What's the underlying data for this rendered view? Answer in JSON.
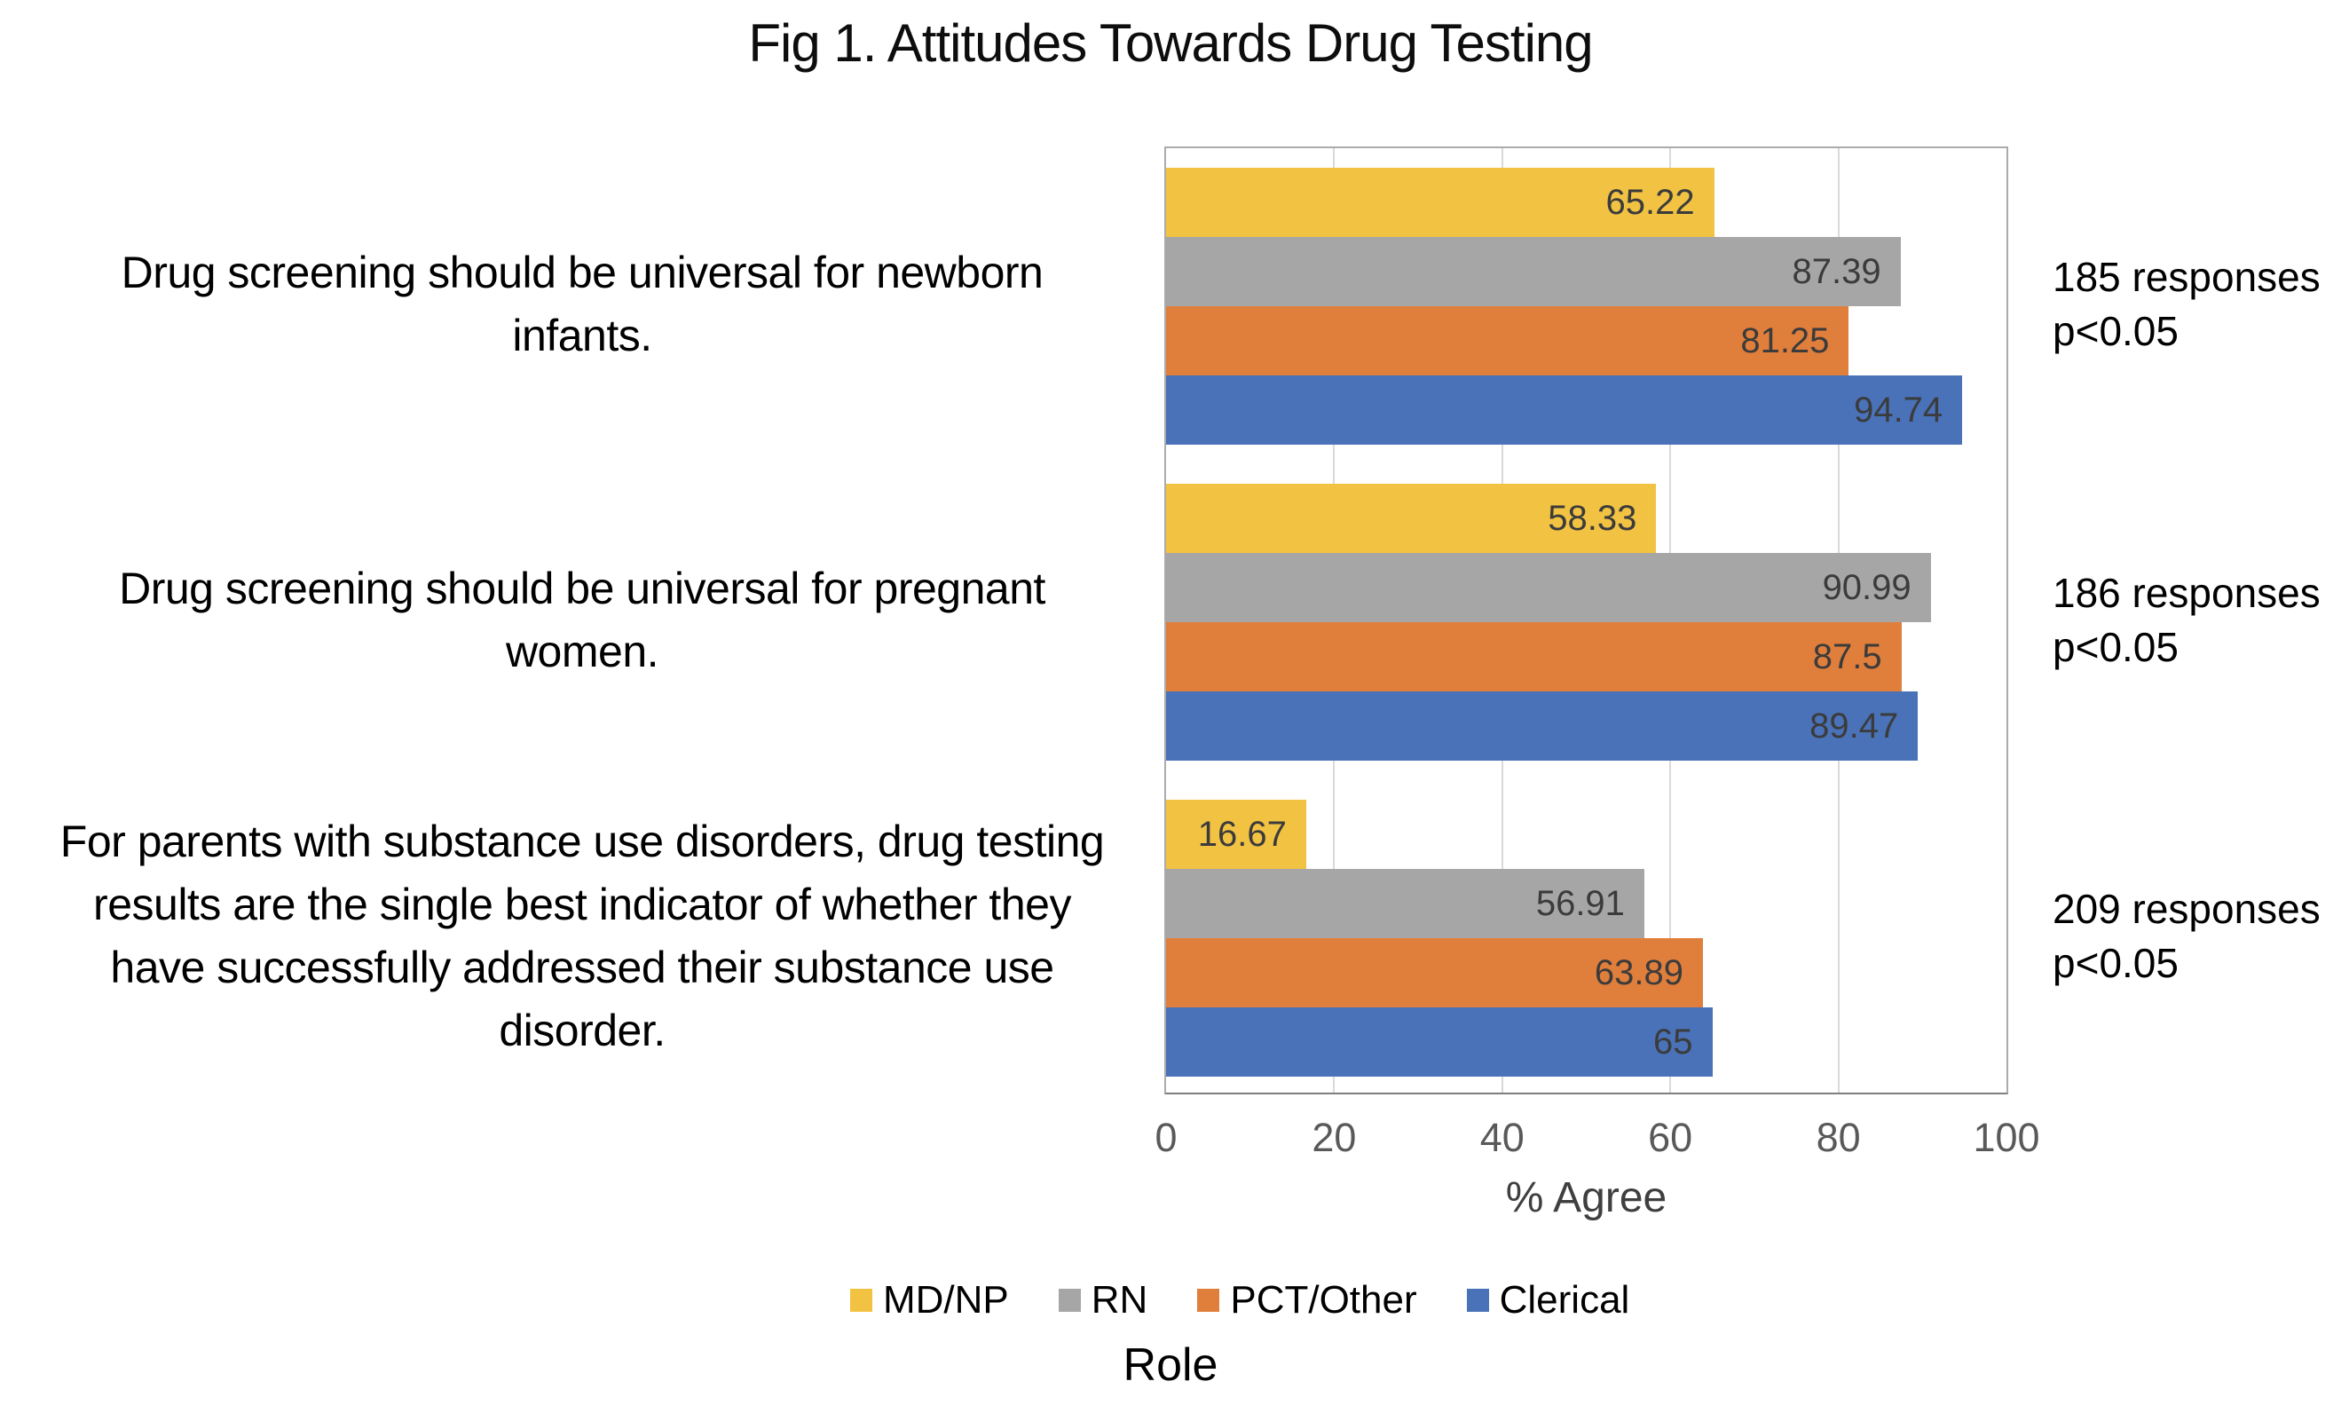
{
  "colors": {
    "grid": "#d9d9d9",
    "plot_border": "#ababab",
    "axis_text": "#595959",
    "data_label_text": "#3b3b3b",
    "body_text": "#000000"
  },
  "chart_data": {
    "type": "bar",
    "orientation": "horizontal",
    "title": "Fig 1. Attitudes Towards Drug Testing",
    "xlabel": "% Agree",
    "legend_title": "Role",
    "legend_position": "bottom",
    "grid": "vertical-major",
    "xlim": [
      0,
      100
    ],
    "xticks": [
      0,
      20,
      40,
      60,
      80,
      100
    ],
    "categories": [
      "Drug screening should be universal for newborn infants.",
      "Drug screening should be universal for pregnant women.",
      "For parents with substance use disorders, drug testing results are the single best indicator of whether they have successfully addressed their substance use disorder."
    ],
    "series": [
      {
        "name": "MD/NP",
        "color": "#F2C343",
        "values": [
          65.22,
          58.33,
          16.67
        ],
        "labels": [
          "65.22",
          "58.33",
          "16.67"
        ]
      },
      {
        "name": "RN",
        "color": "#A6A6A6",
        "values": [
          87.39,
          90.99,
          56.91
        ],
        "labels": [
          "87.39",
          "90.99",
          "56.91"
        ]
      },
      {
        "name": "PCT/Other",
        "color": "#E07E3C",
        "values": [
          81.25,
          87.5,
          63.89
        ],
        "labels": [
          "81.25",
          "87.5",
          "63.89"
        ]
      },
      {
        "name": "Clerical",
        "color": "#4A72B8",
        "values": [
          94.74,
          89.47,
          65
        ],
        "labels": [
          "94.74",
          "89.47",
          "65"
        ]
      }
    ],
    "annotations": [
      {
        "lines": [
          "185 responses",
          "p<0.05"
        ]
      },
      {
        "lines": [
          "186 responses",
          "p<0.05"
        ]
      },
      {
        "lines": [
          "209 responses",
          "p<0.05"
        ]
      }
    ]
  }
}
